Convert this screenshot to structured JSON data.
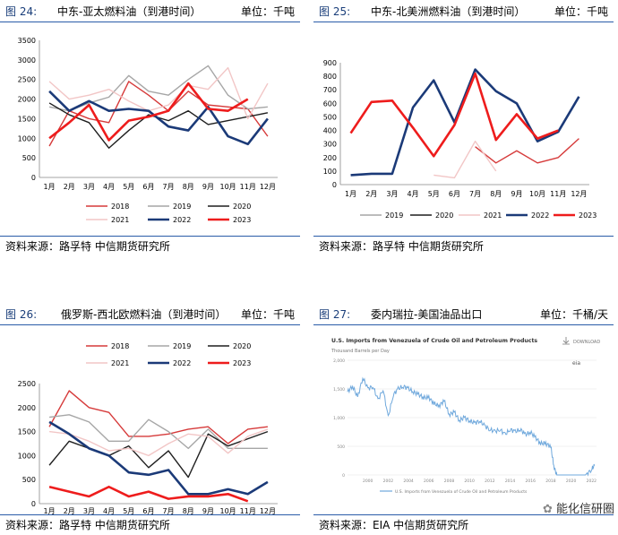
{
  "panels": [
    {
      "fig_label": "图 24:",
      "title": "中东-亚太燃料油（到港时间）",
      "unit": "单位：千吨",
      "source": "资料来源：路孚特    中信期货研究所"
    },
    {
      "fig_label": "图 25:",
      "title": "中东-北美洲燃料油（到港时间）",
      "unit": "单位：千吨",
      "source": "资料来源：路孚特    中信期货研究所"
    },
    {
      "fig_label": "图 26:",
      "title": "俄罗斯-西北欧燃料油（到港时间）",
      "unit": "单位：千吨",
      "source": "资料来源：路孚特    中信期货研究所"
    },
    {
      "fig_label": "图 27:",
      "title": "委内瑞拉-美国油品出口",
      "unit": "单位：千桶/天",
      "source": "资料来源：EIA    中信期货研究所"
    }
  ],
  "colors": {
    "2018": "#d63a3a",
    "2019": "#a6a6a6",
    "2020": "#1f1f1f",
    "2021": "#f2c6c6",
    "2022": "#1b3a78",
    "2023": "#ee1c1c",
    "eia_line": "#6fa8dc",
    "rule": "#2a5ca8"
  },
  "chart_data": [
    {
      "type": "line",
      "categories": [
        "1月",
        "2月",
        "3月",
        "4月",
        "5月",
        "6月",
        "7月",
        "8月",
        "9月",
        "10月",
        "11月",
        "12月"
      ],
      "ylim": [
        0,
        3500
      ],
      "yticks": [
        0,
        500,
        1000,
        1500,
        2000,
        2500,
        3000,
        3500
      ],
      "legend_position": "bottom",
      "series": [
        {
          "name": "2018",
          "values": [
            800,
            1700,
            1500,
            1400,
            2450,
            2100,
            1700,
            2200,
            1850,
            1800,
            1750,
            1050
          ]
        },
        {
          "name": "2019",
          "values": [
            1800,
            1700,
            1900,
            2050,
            2600,
            2200,
            2100,
            2500,
            2850,
            2100,
            1750,
            1800
          ]
        },
        {
          "name": "2020",
          "values": [
            1900,
            1600,
            1400,
            750,
            1200,
            1600,
            1450,
            1700,
            1350,
            1450,
            1550,
            1650
          ]
        },
        {
          "name": "2021",
          "values": [
            2450,
            2000,
            2100,
            2250,
            1950,
            1700,
            1850,
            2350,
            2250,
            2800,
            1500,
            2400
          ]
        },
        {
          "name": "2022",
          "values": [
            2200,
            1700,
            1950,
            1700,
            1750,
            1700,
            1300,
            1200,
            1800,
            1050,
            850,
            1500
          ]
        },
        {
          "name": "2023",
          "values": [
            1000,
            1400,
            1850,
            950,
            1450,
            1550,
            1700,
            2400,
            1750,
            1700,
            2000,
            null
          ]
        }
      ]
    },
    {
      "type": "line",
      "categories": [
        "1月",
        "2月",
        "3月",
        "4月",
        "5月",
        "6月",
        "7月",
        "8月",
        "9月",
        "10月",
        "11月",
        "12月"
      ],
      "ylim": [
        0,
        900
      ],
      "yticks": [
        0,
        100,
        200,
        300,
        400,
        500,
        600,
        700,
        800,
        900
      ],
      "legend_position": "bottom",
      "series": [
        {
          "name": "2018",
          "values": [
            null,
            null,
            null,
            null,
            null,
            null,
            280,
            160,
            250,
            160,
            200,
            340
          ]
        },
        {
          "name": "2019",
          "values": [
            null,
            null,
            null,
            null,
            null,
            null,
            null,
            null,
            null,
            null,
            null,
            null
          ]
        },
        {
          "name": "2020",
          "values": [
            null,
            null,
            null,
            null,
            null,
            null,
            null,
            null,
            null,
            null,
            null,
            null
          ]
        },
        {
          "name": "2021",
          "values": [
            null,
            null,
            null,
            null,
            70,
            50,
            320,
            100,
            null,
            null,
            null,
            null
          ]
        },
        {
          "name": "2022",
          "values": [
            70,
            80,
            80,
            570,
            770,
            460,
            850,
            690,
            600,
            320,
            390,
            650
          ]
        },
        {
          "name": "2023",
          "values": [
            380,
            610,
            620,
            420,
            210,
            440,
            820,
            330,
            520,
            340,
            400,
            null
          ]
        }
      ]
    },
    {
      "type": "line",
      "categories": [
        "1月",
        "2月",
        "3月",
        "4月",
        "5月",
        "6月",
        "7月",
        "8月",
        "9月",
        "10月",
        "11月",
        "12月"
      ],
      "ylim": [
        0,
        2500
      ],
      "yticks": [
        0,
        500,
        1000,
        1500,
        2000,
        2500
      ],
      "legend_position": "top",
      "series": [
        {
          "name": "2018",
          "values": [
            1600,
            2350,
            2000,
            1900,
            1400,
            1400,
            1450,
            1550,
            1600,
            1250,
            1550,
            1600
          ]
        },
        {
          "name": "2019",
          "values": [
            1800,
            1850,
            1700,
            1300,
            1300,
            1750,
            1500,
            1150,
            1550,
            1150,
            1150,
            1150
          ]
        },
        {
          "name": "2020",
          "values": [
            800,
            1300,
            1150,
            1000,
            1200,
            750,
            1100,
            550,
            1450,
            1200,
            1350,
            1500
          ]
        },
        {
          "name": "2021",
          "values": [
            1500,
            1450,
            1300,
            1100,
            1150,
            1000,
            1250,
            1450,
            1400,
            1050,
            1400,
            1550
          ]
        },
        {
          "name": "2022",
          "values": [
            1700,
            1450,
            1150,
            1000,
            650,
            600,
            700,
            200,
            200,
            300,
            200,
            450
          ]
        },
        {
          "name": "2023",
          "values": [
            350,
            250,
            150,
            350,
            150,
            250,
            100,
            150,
            150,
            200,
            50,
            null
          ]
        }
      ]
    },
    {
      "type": "line",
      "title": "U.S. Imports from Venezuela of Crude Oil and Petroleum Products",
      "ylabel": "Thousand Barrels per Day",
      "ylim": [
        0,
        2000
      ],
      "yticks": [
        0,
        500,
        1000,
        1500,
        2000
      ],
      "xticks": [
        "2000",
        "2002",
        "2004",
        "2006",
        "2008",
        "2010",
        "2012",
        "2014",
        "2016",
        "2018",
        "2020",
        "2022"
      ],
      "legend": "U.S. Imports from Venezuela of Crude Oil and Petroleum Products",
      "download_label": "DOWNLOAD",
      "source_logo": "eia",
      "watermark": "能化信研圈",
      "series": [
        {
          "name": "U.S. Imports from Venezuela of Crude Oil and Petroleum Products",
          "x": [
            1999,
            1999.5,
            2000,
            2000.5,
            2001,
            2001.5,
            2002,
            2002.5,
            2003,
            2003.5,
            2004,
            2004.5,
            2005,
            2005.5,
            2006,
            2006.5,
            2007,
            2007.5,
            2008,
            2008.5,
            2009,
            2009.5,
            2010,
            2010.5,
            2011,
            2011.5,
            2012,
            2012.5,
            2013,
            2013.5,
            2014,
            2014.5,
            2015,
            2015.5,
            2016,
            2016.5,
            2017,
            2017.5,
            2018,
            2018.5,
            2019,
            2019.3,
            2019.6,
            2020,
            2020.5,
            2021,
            2021.5,
            2022,
            2022.5,
            2023,
            2023.3
          ],
          "values": [
            1450,
            1550,
            1350,
            1700,
            1500,
            1550,
            1300,
            1500,
            1000,
            1400,
            1500,
            1550,
            1500,
            1450,
            1400,
            1350,
            1350,
            1250,
            1200,
            1300,
            1050,
            1100,
            950,
            1000,
            950,
            900,
            950,
            850,
            800,
            750,
            800,
            700,
            800,
            750,
            800,
            700,
            750,
            650,
            550,
            550,
            500,
            150,
            0,
            0,
            0,
            0,
            0,
            0,
            0,
            100,
            160
          ]
        }
      ]
    }
  ]
}
